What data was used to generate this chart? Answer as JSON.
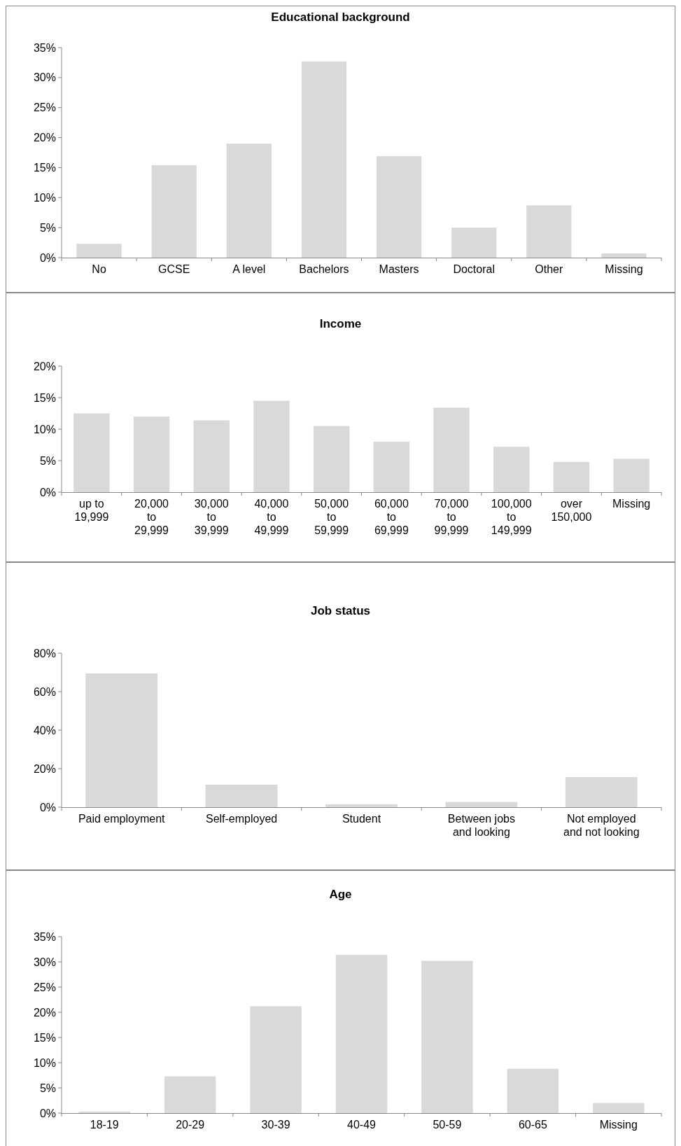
{
  "chart_data": [
    {
      "type": "bar",
      "title": "Educational background",
      "categories": [
        "No",
        "GCSE",
        "A level",
        "Bachelors",
        "Masters",
        "Doctoral",
        "Other",
        "Missing"
      ],
      "values": [
        2.3,
        15.4,
        19.0,
        32.7,
        16.9,
        5.0,
        8.7,
        0.7
      ],
      "color": "#d9d9d9",
      "ylim": [
        0,
        35
      ],
      "yticks": [
        {
          "value": 0,
          "label": "0%"
        },
        {
          "value": 5,
          "label": "5%"
        },
        {
          "value": 10,
          "label": "10%"
        },
        {
          "value": 15,
          "label": "15%"
        },
        {
          "value": 20,
          "label": "20%"
        },
        {
          "value": 25,
          "label": "25%"
        },
        {
          "value": 30,
          "label": "30%"
        },
        {
          "value": 35,
          "label": "35%"
        }
      ],
      "grid": false
    },
    {
      "type": "bar",
      "title": "Income",
      "categories": [
        "up to\n19,999",
        "20,000\nto\n29,999",
        "30,000\nto\n39,999",
        "40,000\nto\n49,999",
        "50,000\nto\n59,999",
        "60,000\nto\n69,999",
        "70,000\nto\n99,999",
        "100,000\nto\n149,999",
        "over\n150,000",
        "Missing"
      ],
      "values": [
        12.5,
        12.0,
        11.4,
        14.5,
        10.5,
        8.0,
        13.4,
        7.2,
        4.8,
        5.3
      ],
      "color": "#d9d9d9",
      "ylim": [
        0,
        20
      ],
      "yticks": [
        {
          "value": 0,
          "label": "0%"
        },
        {
          "value": 5,
          "label": "5%"
        },
        {
          "value": 10,
          "label": "10%"
        },
        {
          "value": 15,
          "label": "15%"
        },
        {
          "value": 20,
          "label": "20%"
        }
      ],
      "grid": false
    },
    {
      "type": "bar",
      "title": "Job status",
      "categories": [
        "Paid employment",
        "Self-employed",
        "Student",
        "Between jobs\nand looking",
        "Not employed\nand not looking"
      ],
      "values": [
        69.5,
        11.7,
        1.5,
        2.7,
        15.6
      ],
      "color": "#d9d9d9",
      "ylim": [
        0,
        80
      ],
      "yticks": [
        {
          "value": 0,
          "label": "0%"
        },
        {
          "value": 20,
          "label": "20%"
        },
        {
          "value": 40,
          "label": "40%"
        },
        {
          "value": 60,
          "label": "60%"
        },
        {
          "value": 80,
          "label": "80%"
        }
      ],
      "grid": false
    },
    {
      "type": "bar",
      "title": "Age",
      "categories": [
        "18-19",
        "20-29",
        "30-39",
        "40-49",
        "50-59",
        "60-65",
        "Missing"
      ],
      "values": [
        0.3,
        7.3,
        21.2,
        31.4,
        30.2,
        8.8,
        2.0
      ],
      "color": "#d9d9d9",
      "ylim": [
        0,
        35
      ],
      "yticks": [
        {
          "value": 0,
          "label": "0%"
        },
        {
          "value": 5,
          "label": "5%"
        },
        {
          "value": 10,
          "label": "10%"
        },
        {
          "value": 15,
          "label": "15%"
        },
        {
          "value": 20,
          "label": "20%"
        },
        {
          "value": 25,
          "label": "25%"
        },
        {
          "value": 30,
          "label": "30%"
        },
        {
          "value": 35,
          "label": "35%"
        }
      ],
      "grid": false
    }
  ]
}
